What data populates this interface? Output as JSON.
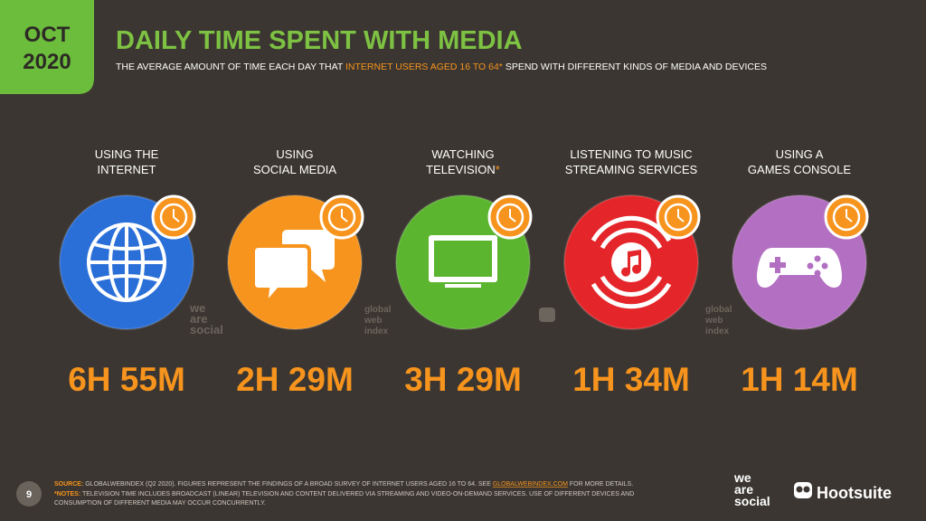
{
  "badge": {
    "month": "OCT",
    "year": "2020"
  },
  "header": {
    "title": "DAILY TIME SPENT WITH MEDIA",
    "subtitle": [
      "THE AVERAGE AMOUNT OF TIME EACH DAY THAT ",
      "INTERNET USERS AGED 16 TO 64*",
      " SPEND WITH DIFFERENT KINDS OF MEDIA AND DEVICES"
    ]
  },
  "items": [
    {
      "label": [
        "USING THE",
        "INTERNET"
      ],
      "value": "6H 55M",
      "color": "#2a6fd8"
    },
    {
      "label": [
        "USING",
        "SOCIAL MEDIA"
      ],
      "value": "2H 29M",
      "color": "#f7941d"
    },
    {
      "label": [
        "WATCHING",
        "TELEVISION"
      ],
      "label_note": "*",
      "value": "3H 29M",
      "color": "#5cb52f"
    },
    {
      "label": [
        "LISTENING TO MUSIC",
        "STREAMING SERVICES"
      ],
      "value": "1H 34M",
      "color": "#e4262a"
    },
    {
      "label": [
        "USING A",
        "GAMES CONSOLE"
      ],
      "value": "1H 14M",
      "color": "#b36fc2"
    }
  ],
  "watermarks": [
    {
      "lines": [
        "we",
        "are",
        "social"
      ]
    },
    {
      "lines": [
        "global",
        "web",
        "index"
      ]
    },
    {
      "lines": [
        "global",
        "web",
        "index"
      ]
    }
  ],
  "footer": {
    "page": "9",
    "source_label": "SOURCE:",
    "source_text": " GLOBALWEBINDEX (Q2 2020). FIGURES REPRESENT THE FINDINGS OF A BROAD SURVEY OF INTERNET USERS AGED 16 TO 64. SEE ",
    "source_link": "GLOBALWEBINDEX.COM",
    "source_end": " FOR MORE DETAILS.",
    "notes_label": "*NOTES:",
    "notes_text": [
      " TELEVISION TIME INCLUDES BROADCAST (LINEAR) TELEVISION AND CONTENT DELIVERED VIA STREAMING AND VIDEO-ON-DEMAND SERVICES. USE OF DIFFERENT DEVICES AND",
      "CONSUMPTION OF DIFFERENT MEDIA MAY OCCUR CONCURRENTLY."
    ],
    "logo_left": [
      "we",
      "are",
      "social"
    ],
    "logo_right": "Hootsuite"
  }
}
